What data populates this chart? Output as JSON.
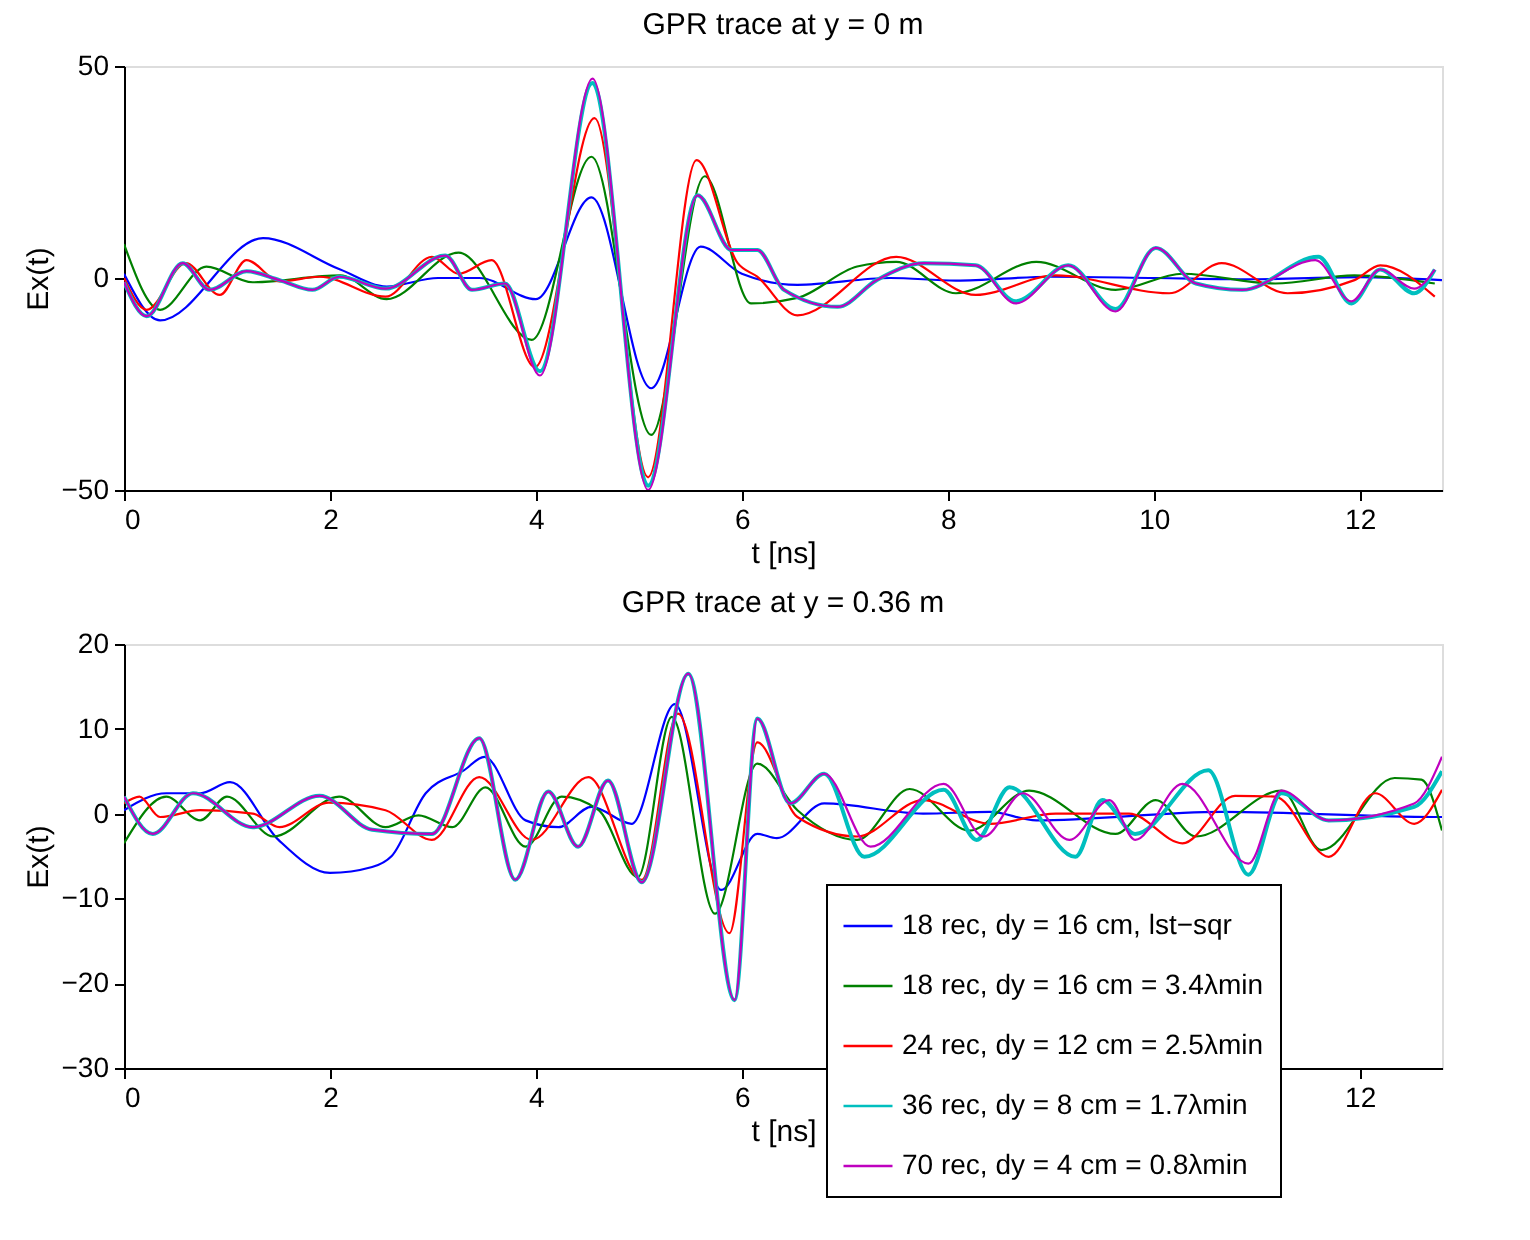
{
  "chart_data": [
    {
      "type": "line",
      "title": "GPR trace at y = 0 m",
      "xlabel": "t [ns]",
      "ylabel": "Ex(t)",
      "xlim": [
        0,
        12.8
      ],
      "xticks": [
        0,
        2,
        4,
        6,
        8,
        10,
        12
      ],
      "ylim": [
        -50,
        50
      ],
      "yticks": [
        -50,
        0,
        50
      ],
      "grid": false,
      "legend": false,
      "marker": "none",
      "line_style": "solid",
      "series": [
        {
          "color": "#0000ff",
          "x": [
            0,
            0.35,
            1.35,
            2.1,
            2.55,
            3.05,
            3.45,
            4.0,
            4.54,
            5.12,
            5.6,
            6.0,
            6.54,
            7.44,
            8.08,
            9.0,
            10.02,
            11.0,
            12.0,
            12.8
          ],
          "values": [
            1,
            -10,
            9.4,
            2,
            -2,
            0,
            0,
            -5,
            19,
            -26,
            7.4,
            1,
            -1.6,
            0,
            -0.6,
            0.3,
            0,
            -0.3,
            0.2,
            -0.5
          ]
        },
        {
          "color": "#008000",
          "x": [
            0,
            0.35,
            0.8,
            1.25,
            2.1,
            2.55,
            3.25,
            3.96,
            4.54,
            5.12,
            5.64,
            6.09,
            6.54,
            7.12,
            7.5,
            8.08,
            8.86,
            9.63,
            10.28,
            11.18,
            11.95,
            12.73
          ],
          "values": [
            8,
            -7.5,
            2.7,
            -1,
            0.6,
            -5,
            6,
            -14.6,
            28.6,
            -37,
            24,
            -6,
            -4.7,
            2.7,
            3.8,
            -3.6,
            3.8,
            -2.8,
            1,
            -1.3,
            0.6,
            -1.3
          ]
        },
        {
          "color": "#ff0000",
          "x": [
            0,
            0.22,
            0.6,
            0.93,
            1.19,
            1.51,
            1.9,
            2.54,
            2.99,
            3.25,
            3.57,
            3.99,
            4.57,
            5.09,
            5.56,
            5.96,
            6.15,
            6.54,
            7.5,
            8.27,
            9.05,
            10.15,
            10.66,
            11.3,
            11.95,
            12.2,
            12.73
          ],
          "values": [
            0,
            -7.5,
            3.5,
            -4,
            4.2,
            -0.8,
            0.3,
            -4.4,
            5,
            1,
            4.2,
            -21,
            37.7,
            -47,
            27.8,
            3.5,
            0.3,
            -8.8,
            5,
            -4,
            0.6,
            -3.6,
            3.5,
            -3.6,
            -0.5,
            3,
            -4.4
          ]
        },
        {
          "color": "#00bfbf",
          "x": [
            0,
            0.22,
            0.57,
            0.83,
            1.19,
            1.51,
            1.83,
            2.09,
            2.54,
            3.12,
            3.38,
            3.7,
            4.04,
            4.55,
            5.09,
            5.57,
            5.9,
            6.15,
            6.41,
            6.93,
            7.31,
            7.77,
            8.27,
            8.66,
            9.17,
            9.63,
            10.02,
            10.41,
            10.86,
            11.6,
            11.92,
            12.2,
            12.53,
            12.73
          ],
          "values": [
            -1,
            -9,
            3.5,
            -2.8,
            1.6,
            -0.5,
            -2.8,
            0.3,
            -2.5,
            5.3,
            -2.8,
            -1.3,
            -22,
            46,
            -49,
            19.5,
            6.6,
            6.6,
            -2.8,
            -6.8,
            -0.5,
            3.5,
            3,
            -5.5,
            3,
            -7.3,
            7.1,
            -1.3,
            -2.8,
            5,
            -6,
            2,
            -3.6,
            2
          ]
        },
        {
          "color": "#bf00bf",
          "x": [
            0,
            0.22,
            0.57,
            0.83,
            1.19,
            1.51,
            1.83,
            2.09,
            2.54,
            3.12,
            3.38,
            3.7,
            4.04,
            4.55,
            5.09,
            5.57,
            5.9,
            6.15,
            6.41,
            6.93,
            7.31,
            7.77,
            8.27,
            8.66,
            9.17,
            9.63,
            10.02,
            10.41,
            10.86,
            11.57,
            11.92,
            12.2,
            12.53,
            12.73
          ],
          "values": [
            -1,
            -9,
            3.5,
            -2.8,
            1.6,
            -0.5,
            -2.8,
            0.3,
            -2.5,
            5.3,
            -2.8,
            -1.3,
            -23,
            47,
            -50,
            19.5,
            6.6,
            6.6,
            -2.8,
            -6.8,
            -0.5,
            3.5,
            3,
            -6,
            3,
            -7.9,
            7.1,
            -1.3,
            -2.8,
            4.2,
            -5.5,
            2,
            -2.5,
            2
          ]
        }
      ]
    },
    {
      "type": "line",
      "title": "GPR trace at y = 0.36 m",
      "xlabel": "t [ns]",
      "ylabel": "Ex(t)",
      "xlim": [
        0,
        12.8
      ],
      "xticks": [
        0,
        2,
        4,
        6,
        12
      ],
      "ylim": [
        -30,
        20
      ],
      "yticks": [
        -30,
        -20,
        -10,
        0,
        10,
        20
      ],
      "grid": false,
      "legend": "bottom right",
      "marker": "none",
      "line_style": "solid",
      "series": [
        {
          "name": "18 rec, dy = 16 cm, lst−sqr",
          "color": "#0000ff",
          "x": [
            0,
            0.41,
            0.74,
            1.03,
            1.5,
            2.0,
            2.41,
            2.6,
            2.93,
            3.3,
            3.5,
            3.9,
            4.22,
            4.54,
            4.93,
            5.35,
            5.8,
            6.15,
            6.34,
            6.8,
            7.76,
            8.41,
            8.86,
            10.66,
            12.73,
            12.8
          ],
          "values": [
            0.4,
            2.4,
            2.4,
            3.7,
            -3.1,
            -7,
            -6.3,
            -5,
            2.4,
            5.1,
            6.7,
            -0.8,
            -1.6,
            0.8,
            -1.2,
            12.9,
            -9,
            -2.4,
            -2.9,
            1.2,
            0,
            0.2,
            -0.8,
            0.2,
            -0.4,
            -0.4
          ]
        },
        {
          "name": "18 rec, dy = 16 cm = 3.4λmin",
          "color": "#008000",
          "x": [
            0,
            0.41,
            0.74,
            1.0,
            1.45,
            2.09,
            2.54,
            2.86,
            3.19,
            3.51,
            3.9,
            4.25,
            4.61,
            4.99,
            5.32,
            5.74,
            6.15,
            6.54,
            7.12,
            7.63,
            8.21,
            8.79,
            9.63,
            10.02,
            10.41,
            11.24,
            11.63,
            12.34,
            12.6,
            12.8
          ],
          "values": [
            -3.5,
            2,
            -0.8,
            2,
            -2.7,
            2,
            -1.6,
            -0.2,
            -1.6,
            3.1,
            -3.9,
            2,
            0.4,
            -7.5,
            11.4,
            -11.8,
            5.9,
            0.4,
            -3.1,
            2.9,
            -2,
            2.7,
            -2.4,
            1.6,
            -2.7,
            2.7,
            -4.3,
            4.2,
            4,
            -2
          ]
        },
        {
          "name": "24 rec, dy = 12 cm = 2.5λmin",
          "color": "#ff0000",
          "x": [
            0,
            0.15,
            0.35,
            0.74,
            1.25,
            1.51,
            1.99,
            2.54,
            2.99,
            3.45,
            3.96,
            4.51,
            5.03,
            5.38,
            5.88,
            6.15,
            6.54,
            7.12,
            7.76,
            8.41,
            9.05,
            9.76,
            10.28,
            10.79,
            11.18,
            11.7,
            12.15,
            12.53,
            12.8
          ],
          "values": [
            1.2,
            2,
            -0.4,
            0.4,
            0,
            -1.6,
            1.3,
            0.4,
            -3.1,
            4.3,
            -3.1,
            4.3,
            -7.8,
            11.8,
            -14.1,
            8.4,
            -0.4,
            -2.7,
            1.6,
            -1.2,
            0,
            0,
            -3.5,
            2.1,
            2,
            -5.1,
            2.4,
            -1.2,
            2.8
          ]
        },
        {
          "name": "36 rec, dy = 8 cm = 1.7λmin",
          "color": "#00bfbf",
          "x": [
            0,
            0.28,
            0.67,
            1.25,
            1.9,
            2.41,
            2.99,
            3.45,
            3.8,
            4.12,
            4.41,
            4.7,
            5.03,
            5.48,
            5.93,
            6.15,
            6.47,
            6.8,
            7.19,
            7.96,
            8.28,
            8.6,
            9.24,
            9.5,
            9.82,
            10.53,
            10.92,
            11.24,
            11.7,
            12.53,
            12.8
          ],
          "values": [
            2,
            -2.4,
            2.4,
            -1.6,
            2.1,
            -1.9,
            -2.4,
            8.9,
            -7.8,
            2.6,
            -3.9,
            3.9,
            -8.1,
            16.5,
            -22,
            11.2,
            1.2,
            4.7,
            -5.1,
            2.8,
            -3.1,
            3.1,
            -5.1,
            1.6,
            -2.4,
            5.1,
            -7.2,
            2.4,
            -0.8,
            0.8,
            5
          ]
        },
        {
          "name": "70 rec, dy = 4 cm = 0.8λmin",
          "color": "#bf00bf",
          "x": [
            0,
            0.28,
            0.67,
            1.25,
            1.9,
            2.41,
            2.99,
            3.45,
            3.8,
            4.12,
            4.41,
            4.7,
            5.03,
            5.48,
            5.93,
            6.15,
            6.47,
            6.8,
            7.25,
            7.96,
            8.35,
            8.73,
            9.18,
            9.57,
            9.82,
            10.28,
            10.92,
            11.24,
            11.7,
            12.53,
            12.8
          ],
          "values": [
            2,
            -2.4,
            2.4,
            -1.6,
            2.1,
            -1.9,
            -2.4,
            8.9,
            -7.8,
            2.6,
            -3.9,
            3.9,
            -8.1,
            16.5,
            -22,
            11.2,
            1.2,
            4.7,
            -3.9,
            3.5,
            -2.7,
            2.4,
            -3.1,
            1.6,
            -3.1,
            3.5,
            -5.9,
            2.7,
            -0.8,
            1.2,
            6.7
          ]
        }
      ]
    }
  ]
}
